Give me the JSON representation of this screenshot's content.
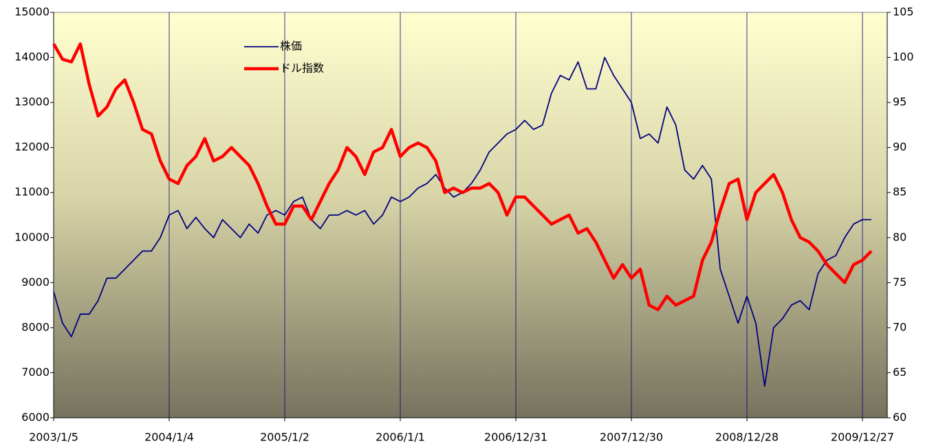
{
  "chart_data": {
    "type": "line",
    "x": [
      "2003/1/5",
      "2003/2/2",
      "2003/3/2",
      "2003/3/30",
      "2003/4/27",
      "2003/5/25",
      "2003/6/22",
      "2003/7/20",
      "2003/8/17",
      "2003/9/14",
      "2003/10/12",
      "2003/11/9",
      "2003/12/7",
      "2004/1/4",
      "2004/2/1",
      "2004/2/29",
      "2004/3/28",
      "2004/4/25",
      "2004/5/23",
      "2004/6/20",
      "2004/7/18",
      "2004/8/15",
      "2004/9/12",
      "2004/10/10",
      "2004/11/7",
      "2004/12/5",
      "2005/1/2",
      "2005/1/30",
      "2005/2/27",
      "2005/3/27",
      "2005/4/24",
      "2005/5/22",
      "2005/6/19",
      "2005/7/17",
      "2005/8/14",
      "2005/9/11",
      "2005/10/9",
      "2005/11/6",
      "2005/12/4",
      "2006/1/1",
      "2006/1/29",
      "2006/2/26",
      "2006/3/26",
      "2006/4/23",
      "2006/5/21",
      "2006/6/18",
      "2006/7/16",
      "2006/8/13",
      "2006/9/10",
      "2006/10/8",
      "2006/11/5",
      "2006/12/3",
      "2006/12/31",
      "2007/1/28",
      "2007/2/25",
      "2007/3/25",
      "2007/4/22",
      "2007/5/20",
      "2007/6/17",
      "2007/7/15",
      "2007/8/12",
      "2007/9/9",
      "2007/10/7",
      "2007/11/4",
      "2007/12/2",
      "2007/12/30",
      "2008/1/27",
      "2008/2/24",
      "2008/3/23",
      "2008/4/20",
      "2008/5/18",
      "2008/6/15",
      "2008/7/13",
      "2008/8/10",
      "2008/9/7",
      "2008/10/5",
      "2008/11/2",
      "2008/11/30",
      "2008/12/28",
      "2009/1/25",
      "2009/2/22",
      "2009/3/22",
      "2009/4/19",
      "2009/5/17",
      "2009/6/14",
      "2009/7/12",
      "2009/8/9",
      "2009/9/6",
      "2009/10/4",
      "2009/11/1",
      "2009/11/29",
      "2009/12/27",
      "2010/1/24"
    ],
    "series": [
      {
        "name": "株価",
        "color": "#000080",
        "axis": "y",
        "values": [
          8800,
          8100,
          7800,
          8300,
          8300,
          8600,
          9100,
          9100,
          9300,
          9500,
          9700,
          9700,
          10000,
          10500,
          10600,
          10200,
          10450,
          10200,
          10000,
          10400,
          10200,
          10000,
          10300,
          10100,
          10500,
          10600,
          10500,
          10800,
          10900,
          10400,
          10200,
          10500,
          10500,
          10600,
          10500,
          10600,
          10300,
          10500,
          10900,
          10800,
          10900,
          11100,
          11200,
          11400,
          11100,
          10900,
          11000,
          11200,
          11500,
          11900,
          12100,
          12300,
          12400,
          12600,
          12400,
          12500,
          13200,
          13600,
          13500,
          13900,
          13300,
          13300,
          14000,
          13600,
          13300,
          13000,
          12200,
          12300,
          12100,
          12900,
          12500,
          11500,
          11300,
          11600,
          11300,
          9300,
          8700,
          8100,
          8700,
          8100,
          6700,
          8000,
          8200,
          8500,
          8600,
          8400,
          9200,
          9500,
          9600,
          10000,
          10300,
          10400,
          10400
        ]
      },
      {
        "name": "ドル指数",
        "color": "#ff0000",
        "axis": "y2",
        "values": [
          101.5,
          99.8,
          99.5,
          101.5,
          97,
          93.5,
          94.5,
          96.5,
          97.5,
          95,
          92,
          91.5,
          88.5,
          86.5,
          86,
          88,
          89,
          91,
          88.5,
          89,
          90,
          89,
          88,
          86,
          83.5,
          81.5,
          81.5,
          83.5,
          83.5,
          82,
          84,
          86,
          87.5,
          90,
          89,
          87,
          89.5,
          90,
          92,
          89,
          90,
          90.5,
          90,
          88.5,
          85,
          85.5,
          85,
          85.5,
          85.5,
          86,
          85,
          82.5,
          84.5,
          84.5,
          83.5,
          82.5,
          81.5,
          82,
          82.5,
          80.5,
          81,
          79.5,
          77.5,
          75.5,
          77,
          75.5,
          76.5,
          72.5,
          72,
          73.5,
          72.5,
          73,
          73.5,
          77.5,
          79.5,
          83,
          86,
          86.5,
          82,
          85,
          86,
          87,
          85,
          82,
          80,
          79.5,
          78.5,
          77,
          76,
          75,
          77,
          77.5,
          78.5
        ]
      }
    ],
    "xticks": [
      "2003/1/5",
      "2004/1/4",
      "2005/1/2",
      "2006/1/1",
      "2006/12/31",
      "2007/12/30",
      "2008/12/28",
      "2009/12/27"
    ],
    "ylim": [
      6000,
      15000
    ],
    "yticks": [
      6000,
      7000,
      8000,
      9000,
      10000,
      11000,
      12000,
      13000,
      14000,
      15000
    ],
    "y2lim": [
      60,
      105
    ],
    "y2ticks": [
      60,
      65,
      70,
      75,
      80,
      85,
      90,
      95,
      100,
      105
    ],
    "grid": true
  }
}
